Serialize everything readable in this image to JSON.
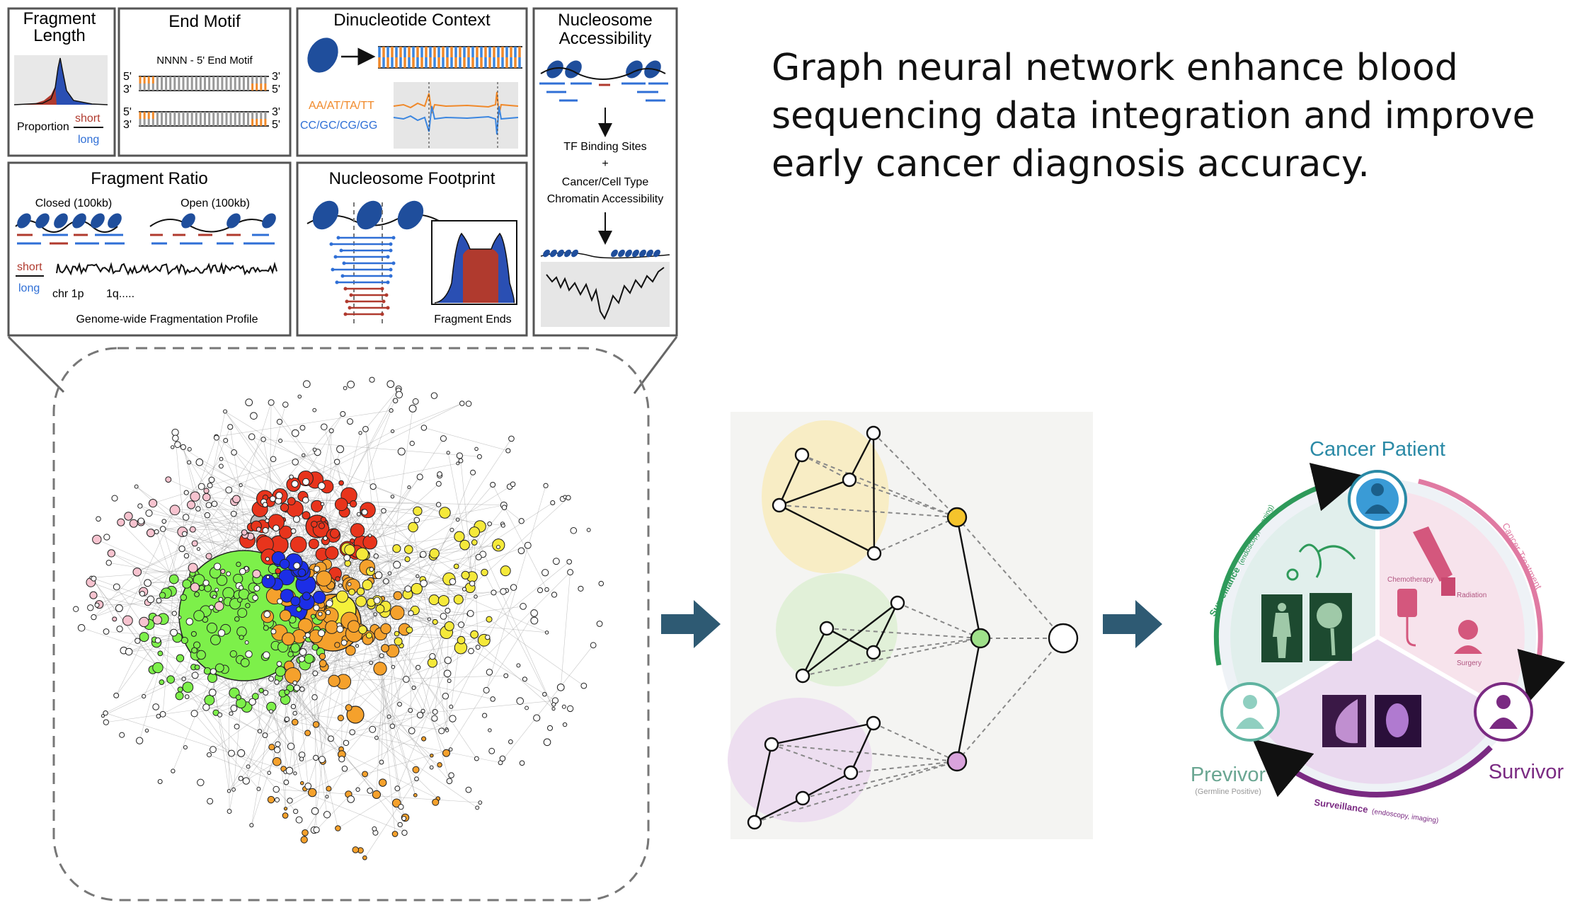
{
  "headline": [
    "Graph neural network enhance blood",
    "sequencing data integration and improve",
    "early cancer diagnosis accuracy."
  ],
  "panels": {
    "fragment_length": {
      "title_l1": "Fragment",
      "title_l2": "Length",
      "proportion": "Proportion",
      "short": "short",
      "long": "long"
    },
    "end_motif": {
      "title": "End Motif",
      "subtitle": "NNNN - 5' End Motif",
      "p5": "5'",
      "p3": "3'"
    },
    "dinucleotide": {
      "title": "Dinucleotide Context",
      "at_label": "AA/AT/TA/TT",
      "gc_label": "CC/GC/CG/GG"
    },
    "nucleosome_accessibility": {
      "title_l1": "Nucleosome",
      "title_l2": "Accessibility",
      "tf": "TF Binding Sites",
      "plus": "+",
      "ct_l1": "Cancer/Cell Type",
      "ct_l2": "Chromatin  Accessibility"
    },
    "fragment_ratio": {
      "title": "Fragment Ratio",
      "closed": "Closed (100kb)",
      "open": "Open (100kb)",
      "short": "short",
      "long": "long",
      "chr": "chr 1p",
      "q": "1q.....",
      "profile": "Genome-wide Fragmentation Profile"
    },
    "nucleosome_footprint": {
      "title": "Nucleosome  Footprint",
      "ends": "Fragment Ends"
    }
  },
  "outcome_cycle": {
    "cancer_patient": "Cancer Patient",
    "survivor": "Survivor",
    "previvor": "Previvor",
    "previvor_sub": "(Germline Positive)",
    "surveillance_top": "Surveillance",
    "surveillance_top_sub": "(endoscopy, imaging)",
    "surveillance_bottom": "Surveillance",
    "surveillance_bottom_sub": "(endoscopy, imaging)",
    "cancer_treatment": "Cancer Treatment",
    "chemotherapy": "Chemotherapy",
    "radiation": "Radiation",
    "surgery": "Surgery"
  },
  "colors": {
    "nucleosome_blue": "#1f4e9c",
    "short_red": "#b03a2e",
    "long_blue": "#2f6fd6",
    "teal": "#2b8aa6",
    "arrow": "#2e5a73",
    "green_arc": "#2e9a5a",
    "pink_arc": "#e07aa2",
    "purple_arc": "#7a2a82"
  }
}
